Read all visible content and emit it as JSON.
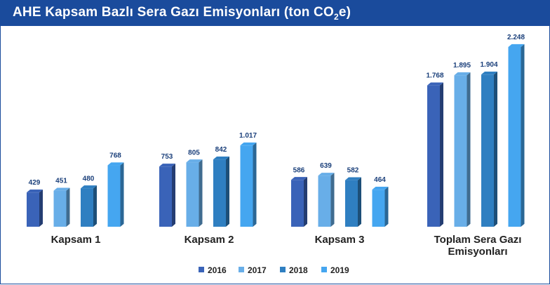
{
  "title": {
    "main": "AHE Kapsam Bazlı Sera Gazı Emisyonları (ton CO",
    "sub": "2",
    "end": "e)"
  },
  "colors": {
    "header_bg": "#1a4b9c",
    "series": [
      "#3a63b8",
      "#68aee8",
      "#2f7fc1",
      "#45a6f0"
    ],
    "value_text": "#1a3f7a"
  },
  "chart_data": {
    "type": "bar",
    "title": "AHE Kapsam Bazlı Sera Gazı Emisyonları (ton CO2e)",
    "categories": [
      "Kapsam 1",
      "Kapsam 2",
      "Kapsam 3",
      "Toplam Sera Gazı Emisyonları"
    ],
    "category_lines": [
      [
        "Kapsam 1"
      ],
      [
        "Kapsam 2"
      ],
      [
        "Kapsam 3"
      ],
      [
        "Toplam Sera Gazı",
        "Emisyonları"
      ]
    ],
    "series": [
      {
        "name": "2016",
        "values": [
          429,
          753,
          586,
          1768
        ],
        "labels": [
          "429",
          "753",
          "586",
          "1.768"
        ]
      },
      {
        "name": "2017",
        "values": [
          451,
          805,
          639,
          1895
        ],
        "labels": [
          "451",
          "805",
          "639",
          "1.895"
        ]
      },
      {
        "name": "2018",
        "values": [
          480,
          842,
          582,
          1904
        ],
        "labels": [
          "480",
          "842",
          "582",
          "1.904"
        ]
      },
      {
        "name": "2019",
        "values": [
          768,
          1017,
          464,
          2248
        ],
        "labels": [
          "768",
          "1.017",
          "464",
          "2.248"
        ]
      }
    ],
    "ylim": [
      0,
      2248
    ],
    "grid": false,
    "legend_position": "bottom"
  }
}
